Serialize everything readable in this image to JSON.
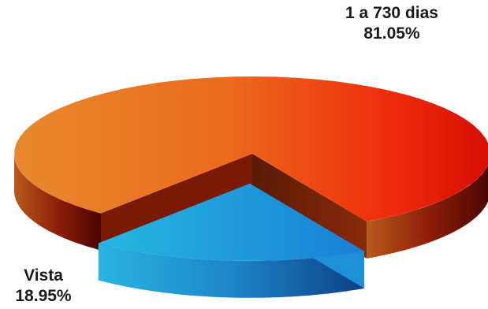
{
  "chart_data": {
    "type": "pie",
    "title": "",
    "slices": [
      {
        "label": "1 a 730 dias",
        "value": 81.05,
        "value_text": "81.05%",
        "color": "#e8520f"
      },
      {
        "label": "Vista",
        "value": 18.95,
        "value_text": "18.95%",
        "color": "#1aa0db"
      }
    ],
    "exploded": "Vista",
    "style": "3d",
    "legend": "none"
  }
}
